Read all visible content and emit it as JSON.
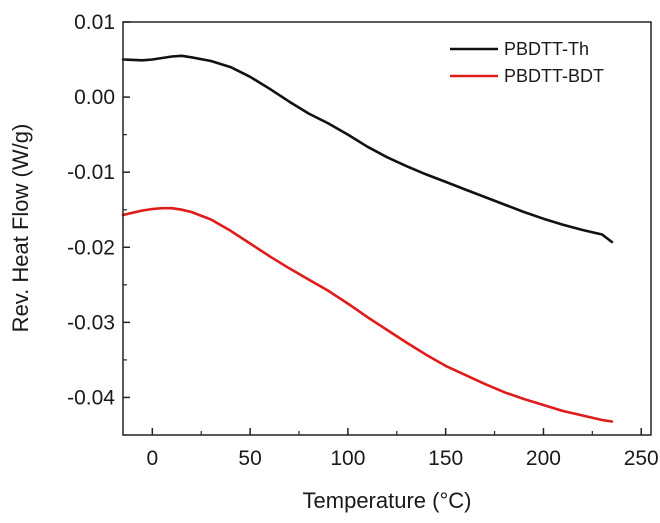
{
  "chart_data": {
    "type": "line",
    "xlabel": "Temperature (°C)",
    "ylabel": "Rev. Heat Flow (W/g)",
    "xlim": [
      -15,
      255
    ],
    "ylim": [
      -0.045,
      0.01
    ],
    "x_ticks": [
      0,
      50,
      100,
      150,
      200,
      250
    ],
    "x_tick_labels": [
      "0",
      "50",
      "100",
      "150",
      "200",
      "250"
    ],
    "y_ticks": [
      0.01,
      0.0,
      -0.01,
      -0.02,
      -0.03,
      -0.04
    ],
    "y_tick_labels": [
      "0.01",
      "0.00",
      "-0.01",
      "-0.02",
      "-0.03",
      "-0.04"
    ],
    "grid": false,
    "legend": "top-right",
    "series": [
      {
        "name": "PBDTT-Th",
        "color": "#111111",
        "x": [
          -15,
          -5,
          0,
          5,
          10,
          15,
          20,
          30,
          40,
          50,
          60,
          70,
          80,
          90,
          100,
          110,
          120,
          130,
          140,
          150,
          160,
          170,
          180,
          190,
          200,
          210,
          220,
          230,
          235
        ],
        "y": [
          0.005,
          0.0049,
          0.005,
          0.0052,
          0.0054,
          0.0055,
          0.0053,
          0.0048,
          0.004,
          0.0027,
          0.0011,
          -0.0006,
          -0.0022,
          -0.0035,
          -0.005,
          -0.0066,
          -0.008,
          -0.0092,
          -0.0103,
          -0.0113,
          -0.0123,
          -0.0133,
          -0.0143,
          -0.0153,
          -0.0162,
          -0.017,
          -0.0177,
          -0.0183,
          -0.0193
        ]
      },
      {
        "name": "PBDTT-BDT",
        "color": "#e01b1b",
        "x": [
          -15,
          -10,
          -5,
          0,
          5,
          10,
          15,
          20,
          30,
          40,
          50,
          60,
          70,
          80,
          90,
          100,
          110,
          120,
          130,
          140,
          150,
          160,
          170,
          180,
          190,
          200,
          210,
          220,
          230,
          235
        ],
        "y": [
          -0.0157,
          -0.0154,
          -0.0151,
          -0.0149,
          -0.0148,
          -0.0148,
          -0.015,
          -0.0153,
          -0.0163,
          -0.0178,
          -0.0195,
          -0.0212,
          -0.0228,
          -0.0243,
          -0.0258,
          -0.0275,
          -0.0293,
          -0.031,
          -0.0327,
          -0.0343,
          -0.0358,
          -0.037,
          -0.0382,
          -0.0393,
          -0.0402,
          -0.041,
          -0.0418,
          -0.0424,
          -0.043,
          -0.0432
        ]
      }
    ]
  }
}
